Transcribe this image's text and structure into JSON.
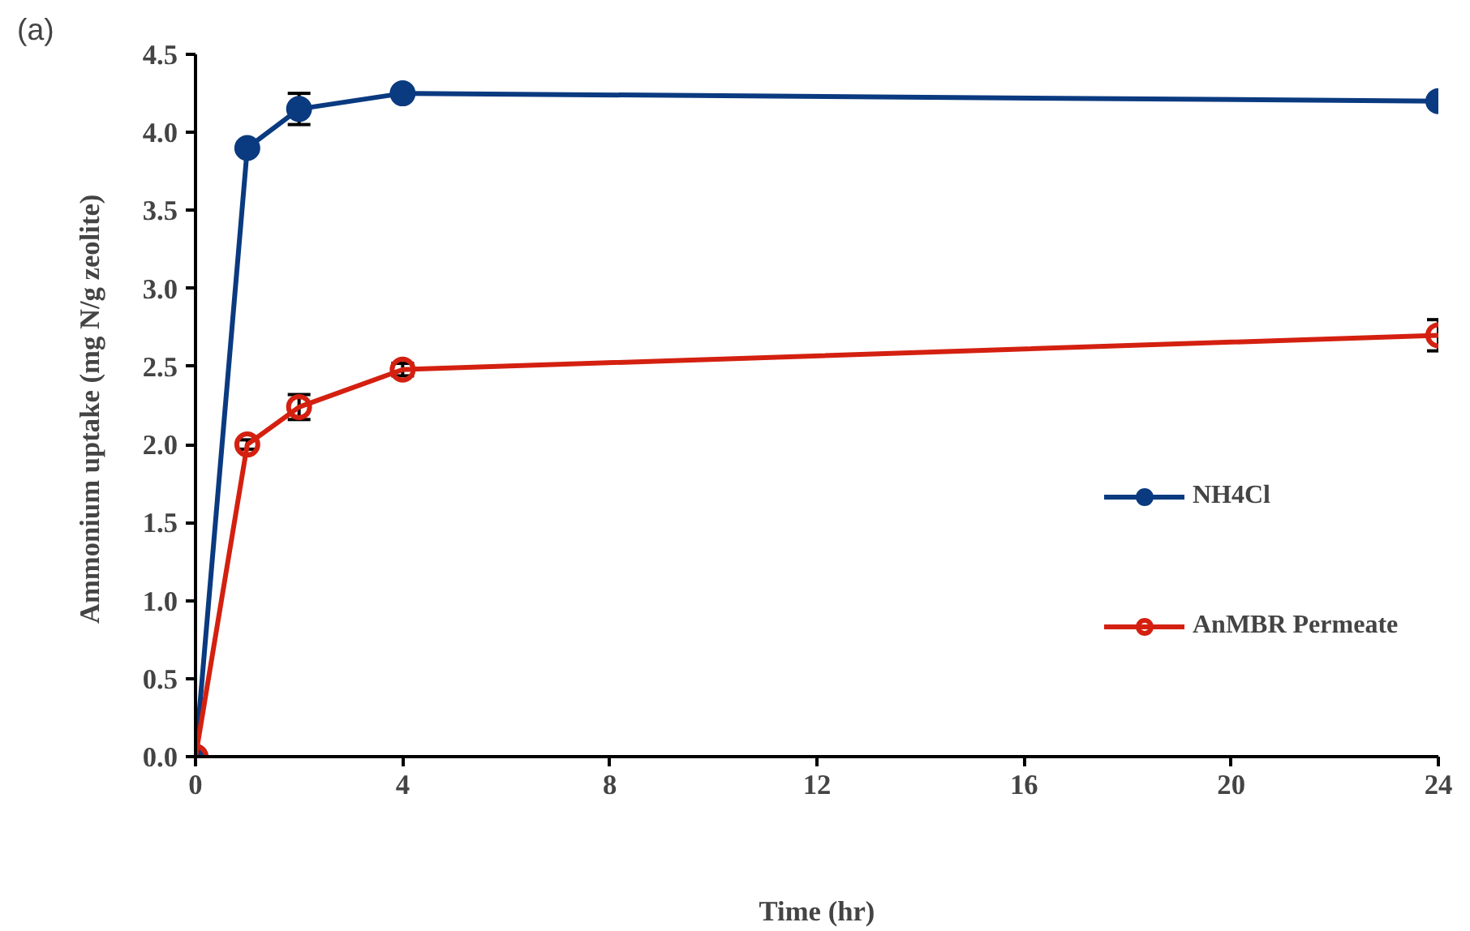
{
  "chart_data": {
    "type": "line",
    "xlabel": "Time (hr)",
    "ylabel": "Ammonium uptake  (mg N/g zeolite)",
    "x": [
      0,
      1,
      2,
      4,
      24
    ],
    "series": [
      {
        "name": "NH4Cl",
        "color": "#0a3a80",
        "values": [
          0,
          3.9,
          4.15,
          4.25,
          4.2
        ],
        "errors": [
          null,
          null,
          0.1,
          null,
          null
        ]
      },
      {
        "name": "AnMBR Permeate",
        "color": "#d42010",
        "values": [
          0,
          2.0,
          2.24,
          2.48,
          2.7
        ],
        "errors": [
          null,
          0.03,
          0.08,
          0.04,
          0.1
        ]
      }
    ],
    "xlim": [
      0,
      24
    ],
    "xticks": [
      0,
      4,
      8,
      12,
      16,
      20,
      24
    ],
    "ylim": [
      0,
      4.5
    ],
    "yticks": [
      {
        "value": 0,
        "label": "0.0"
      },
      0.5,
      {
        "value": 1,
        "label": "1.0"
      },
      1.5,
      {
        "value": 2,
        "label": "2.0"
      },
      2.5,
      {
        "value": 3,
        "label": "3.0"
      },
      3.5,
      {
        "value": 4,
        "label": "4.0"
      },
      4.5
    ],
    "marker": "circle",
    "line_style": "solid",
    "grid": false,
    "legend": "right",
    "annotations": [
      "(a)"
    ]
  }
}
